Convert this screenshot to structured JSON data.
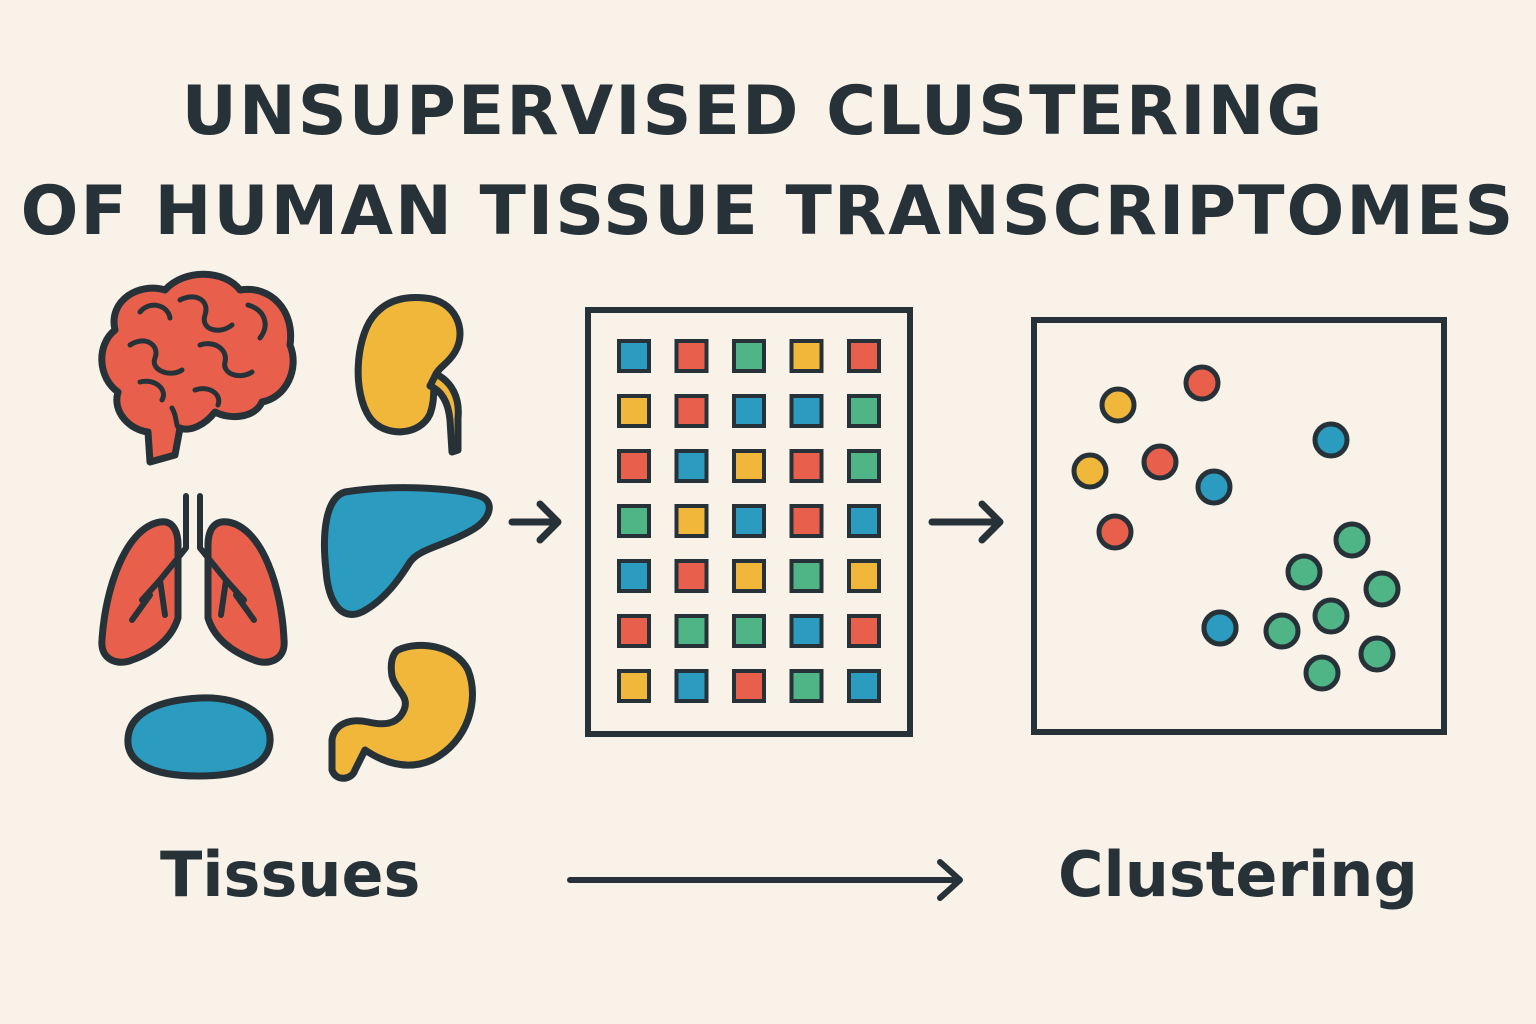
{
  "title": {
    "line1": "UNSUPERVISED CLUSTERING",
    "line2": "OF HUMAN TISSUE TRANSCRIPTOMES"
  },
  "labels": {
    "left": "Tissues",
    "right": "Clustering"
  },
  "colors": {
    "background": "#f8f2e8",
    "outline": "#263238",
    "red": "#e8604c",
    "yellow": "#f0b73a",
    "blue": "#2b9cbf",
    "green": "#4fb486"
  },
  "tissues": [
    {
      "name": "brain-icon",
      "color": "red"
    },
    {
      "name": "kidney-icon",
      "color": "yellow"
    },
    {
      "name": "lungs-icon",
      "color": "red"
    },
    {
      "name": "liver-icon",
      "color": "blue"
    },
    {
      "name": "spleen-icon",
      "color": "blue"
    },
    {
      "name": "stomach-icon",
      "color": "yellow"
    }
  ],
  "expression_matrix": {
    "rows": 7,
    "cols": 5,
    "cells": [
      [
        "blue",
        "red",
        "green",
        "yellow",
        "red"
      ],
      [
        "yellow",
        "red",
        "blue",
        "blue",
        "green"
      ],
      [
        "red",
        "blue",
        "yellow",
        "red",
        "green"
      ],
      [
        "green",
        "yellow",
        "blue",
        "red",
        "blue"
      ],
      [
        "blue",
        "red",
        "yellow",
        "green",
        "yellow"
      ],
      [
        "red",
        "green",
        "green",
        "blue",
        "red"
      ],
      [
        "yellow",
        "blue",
        "red",
        "green",
        "blue"
      ]
    ]
  },
  "cluster_points": [
    {
      "color": "yellow"
    },
    {
      "color": "red"
    },
    {
      "color": "yellow"
    },
    {
      "color": "red"
    },
    {
      "color": "blue"
    },
    {
      "color": "red"
    },
    {
      "color": "blue"
    },
    {
      "color": "green"
    },
    {
      "color": "green"
    },
    {
      "color": "green"
    },
    {
      "color": "blue"
    },
    {
      "color": "green"
    },
    {
      "color": "green"
    },
    {
      "color": "green"
    },
    {
      "color": "green"
    },
    {
      "color": "blue"
    }
  ]
}
